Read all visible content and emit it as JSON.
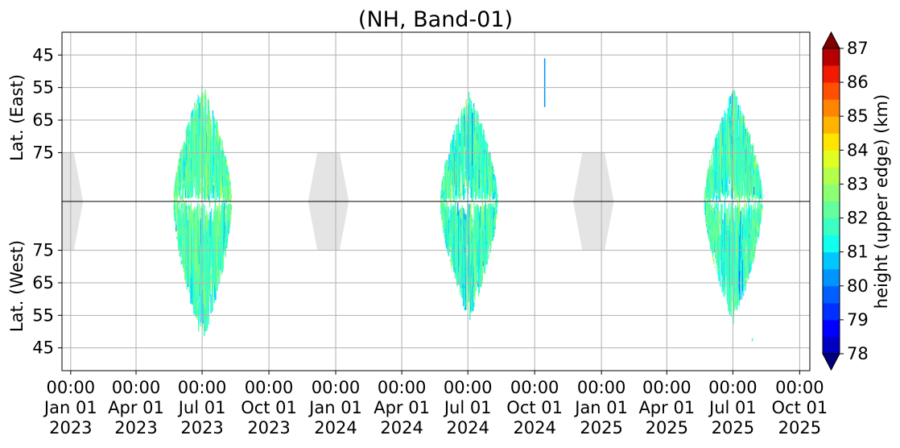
{
  "chart_data": {
    "type": "heatmap",
    "title": "(NH, Band-01)",
    "ylabel_top": "Lat. (East)",
    "ylabel_bottom": "Lat. (West)",
    "colorbar_label": "height (upper edge) (km)",
    "x_ticks": [
      {
        "time": "00:00",
        "date": "Jan 01",
        "year": "2023"
      },
      {
        "time": "00:00",
        "date": "Apr 01",
        "year": "2023"
      },
      {
        "time": "00:00",
        "date": "Jul 01",
        "year": "2023"
      },
      {
        "time": "00:00",
        "date": "Oct 01",
        "year": "2023"
      },
      {
        "time": "00:00",
        "date": "Jan 01",
        "year": "2024"
      },
      {
        "time": "00:00",
        "date": "Apr 01",
        "year": "2024"
      },
      {
        "time": "00:00",
        "date": "Jul 01",
        "year": "2024"
      },
      {
        "time": "00:00",
        "date": "Oct 01",
        "year": "2024"
      },
      {
        "time": "00:00",
        "date": "Jan 01",
        "year": "2025"
      },
      {
        "time": "00:00",
        "date": "Apr 01",
        "year": "2025"
      },
      {
        "time": "00:00",
        "date": "Jul 01",
        "year": "2025"
      },
      {
        "time": "00:00",
        "date": "Oct 01",
        "year": "2025"
      }
    ],
    "x_range": [
      "2022-12-20",
      "2025-10-15"
    ],
    "y_top_ticks": [
      "45",
      "55",
      "65",
      "75"
    ],
    "y_bottom_ticks": [
      "75",
      "65",
      "55",
      "45"
    ],
    "lat_range": [
      38,
      90
    ],
    "colorbar_ticks": [
      "78",
      "79",
      "80",
      "81",
      "82",
      "83",
      "84",
      "85",
      "86",
      "87"
    ],
    "colorbar_range": [
      78,
      87
    ],
    "colorbar_step": 0.5,
    "colorbar_extend": "both",
    "colors": [
      "#00007f",
      "#0000c4",
      "#0000ff",
      "#0030ff",
      "#0060ff",
      "#0094ff",
      "#00c8ff",
      "#10ffef",
      "#3bffc3",
      "#62ff9c",
      "#8cff73",
      "#b3ff4c",
      "#deff20",
      "#ffe500",
      "#ffb400",
      "#ff8400",
      "#ff4f00",
      "#f01b00",
      "#b40000",
      "#800000"
    ],
    "grid": true,
    "polar_night_color": "#e4e4e4",
    "polar_night_centers": [
      "2022-12-21",
      "2023-12-22",
      "2024-12-21"
    ],
    "polar_night_edge_lat": 75,
    "polar_night_halfwidth_days": 28,
    "seasons": [
      {
        "start": "2023-05-22",
        "end": "2023-08-10",
        "center": "2023-07-01",
        "east_top": 53,
        "west_top": 46,
        "mean": 82.2
      },
      {
        "start": "2024-05-24",
        "end": "2024-08-11",
        "center": "2024-07-02",
        "east_top": 56,
        "west_top": 53,
        "mean": 82.0
      },
      {
        "start": "2025-05-22",
        "end": "2025-08-10",
        "center": "2025-07-01",
        "east_top": 55,
        "west_top": 52,
        "mean": 82.1
      }
    ],
    "isolated_events": [
      {
        "date": "2024-10-14",
        "side": "east",
        "lat_from": 46,
        "lat_to": 61,
        "value": 80.3
      },
      {
        "date": "2025-07-27",
        "side": "west",
        "lat_from": 47,
        "lat_to": 48,
        "value": 82.4
      }
    ]
  }
}
